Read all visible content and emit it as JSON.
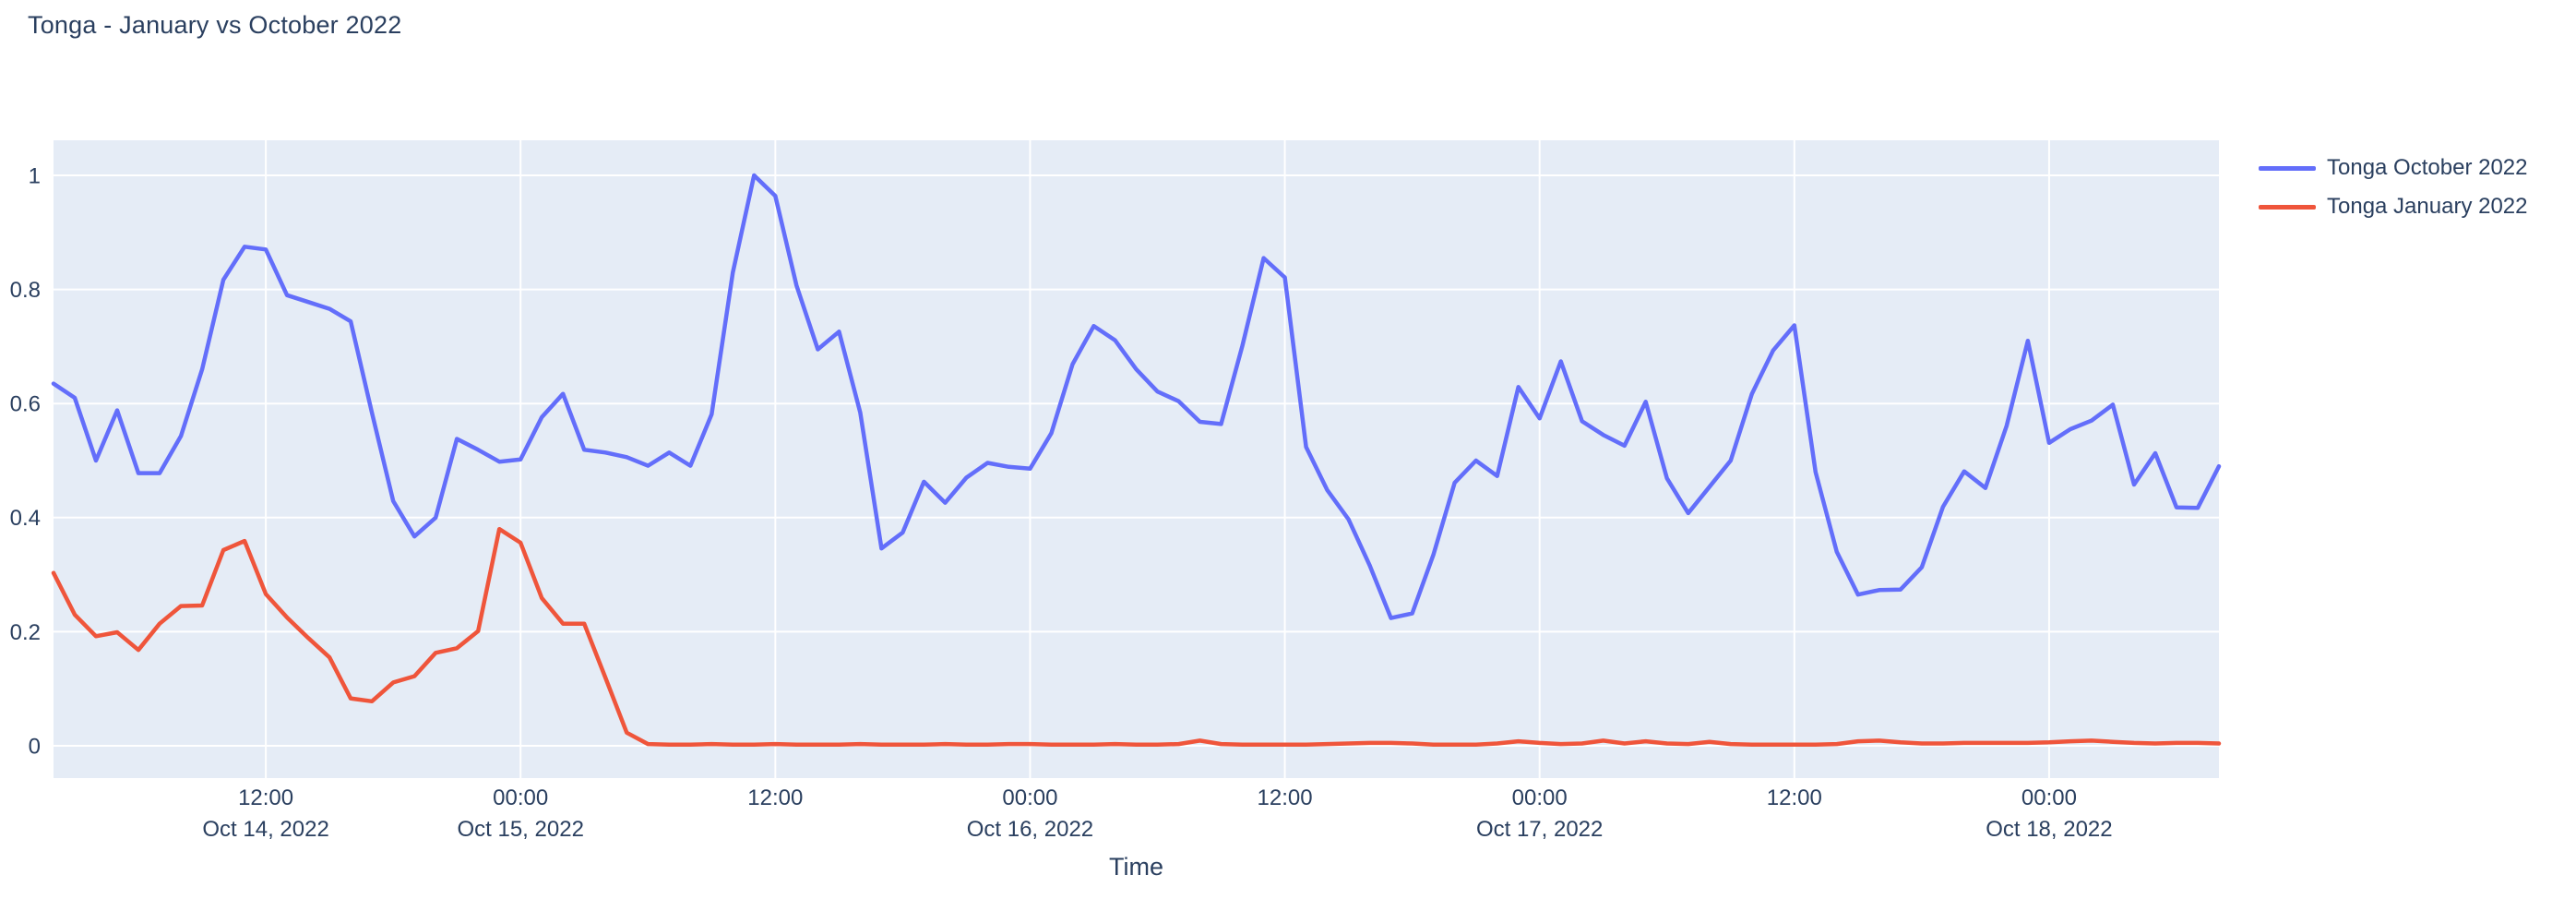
{
  "title": "Tonga - January vs October 2022",
  "colors": {
    "plot_background": "#e5ecf6",
    "paper_background": "#ffffff",
    "gridline": "#ffffff",
    "text": "#2a3f5f",
    "october_line": "#636efa",
    "january_line": "#ef553b"
  },
  "legend": {
    "items": [
      {
        "label": "Tonga October 2022",
        "color": "#636efa"
      },
      {
        "label": "Tonga January 2022",
        "color": "#ef553b"
      }
    ]
  },
  "x_axis_title": "Time",
  "chart_data": {
    "type": "line",
    "title": "Tonga - January vs October 2022",
    "xlabel": "Time",
    "ylabel": "",
    "ylim": [
      -0.06,
      1.06
    ],
    "grid": true,
    "legend_position": "outside-top-right",
    "y_ticks": [
      0,
      0.2,
      0.4,
      0.6,
      0.8,
      1
    ],
    "y_tick_labels": [
      "0",
      "0.2",
      "0.4",
      "0.6",
      "0.8",
      "1"
    ],
    "x_ticks": [
      {
        "index": 10,
        "time": "12:00",
        "date": "Oct 14, 2022"
      },
      {
        "index": 22,
        "time": "00:00",
        "date": "Oct 15, 2022"
      },
      {
        "index": 34,
        "time": "12:00",
        "date": ""
      },
      {
        "index": 46,
        "time": "00:00",
        "date": "Oct 16, 2022"
      },
      {
        "index": 58,
        "time": "12:00",
        "date": ""
      },
      {
        "index": 70,
        "time": "00:00",
        "date": "Oct 17, 2022"
      },
      {
        "index": 82,
        "time": "12:00",
        "date": ""
      },
      {
        "index": 94,
        "time": "00:00",
        "date": "Oct 18, 2022"
      }
    ],
    "x": [
      "2022-10-14 02:00",
      "2022-10-14 03:00",
      "2022-10-14 04:00",
      "2022-10-14 05:00",
      "2022-10-14 06:00",
      "2022-10-14 07:00",
      "2022-10-14 08:00",
      "2022-10-14 09:00",
      "2022-10-14 10:00",
      "2022-10-14 11:00",
      "2022-10-14 12:00",
      "2022-10-14 13:00",
      "2022-10-14 14:00",
      "2022-10-14 15:00",
      "2022-10-14 16:00",
      "2022-10-14 17:00",
      "2022-10-14 18:00",
      "2022-10-14 19:00",
      "2022-10-14 20:00",
      "2022-10-14 21:00",
      "2022-10-14 22:00",
      "2022-10-14 23:00",
      "2022-10-15 00:00",
      "2022-10-15 01:00",
      "2022-10-15 02:00",
      "2022-10-15 03:00",
      "2022-10-15 04:00",
      "2022-10-15 05:00",
      "2022-10-15 06:00",
      "2022-10-15 07:00",
      "2022-10-15 08:00",
      "2022-10-15 09:00",
      "2022-10-15 10:00",
      "2022-10-15 11:00",
      "2022-10-15 12:00",
      "2022-10-15 13:00",
      "2022-10-15 14:00",
      "2022-10-15 15:00",
      "2022-10-15 16:00",
      "2022-10-15 17:00",
      "2022-10-15 18:00",
      "2022-10-15 19:00",
      "2022-10-15 20:00",
      "2022-10-15 21:00",
      "2022-10-15 22:00",
      "2022-10-15 23:00",
      "2022-10-16 00:00",
      "2022-10-16 01:00",
      "2022-10-16 02:00",
      "2022-10-16 03:00",
      "2022-10-16 04:00",
      "2022-10-16 05:00",
      "2022-10-16 06:00",
      "2022-10-16 07:00",
      "2022-10-16 08:00",
      "2022-10-16 09:00",
      "2022-10-16 10:00",
      "2022-10-16 11:00",
      "2022-10-16 12:00",
      "2022-10-16 13:00",
      "2022-10-16 14:00",
      "2022-10-16 15:00",
      "2022-10-16 16:00",
      "2022-10-16 17:00",
      "2022-10-16 18:00",
      "2022-10-16 19:00",
      "2022-10-16 20:00",
      "2022-10-16 21:00",
      "2022-10-16 22:00",
      "2022-10-16 23:00",
      "2022-10-17 00:00",
      "2022-10-17 01:00",
      "2022-10-17 02:00",
      "2022-10-17 03:00",
      "2022-10-17 04:00",
      "2022-10-17 05:00",
      "2022-10-17 06:00",
      "2022-10-17 07:00",
      "2022-10-17 08:00",
      "2022-10-17 09:00",
      "2022-10-17 10:00",
      "2022-10-17 11:00",
      "2022-10-17 12:00",
      "2022-10-17 13:00",
      "2022-10-17 14:00",
      "2022-10-17 15:00",
      "2022-10-17 16:00",
      "2022-10-17 17:00",
      "2022-10-17 18:00",
      "2022-10-17 19:00",
      "2022-10-17 20:00",
      "2022-10-17 21:00",
      "2022-10-17 22:00",
      "2022-10-17 23:00",
      "2022-10-18 00:00",
      "2022-10-18 01:00",
      "2022-10-18 02:00",
      "2022-10-18 03:00",
      "2022-10-18 04:00",
      "2022-10-18 05:00",
      "2022-10-18 06:00",
      "2022-10-18 07:00",
      "2022-10-18 08:00"
    ],
    "series": [
      {
        "name": "Tonga October 2022",
        "color": "#636efa",
        "values": [
          0.635,
          0.61,
          0.5,
          0.588,
          0.478,
          0.478,
          0.543,
          0.66,
          0.817,
          0.875,
          0.87,
          0.79,
          0.778,
          0.766,
          0.744,
          0.584,
          0.429,
          0.367,
          0.4,
          0.538,
          0.519,
          0.498,
          0.502,
          0.576,
          0.617,
          0.519,
          0.514,
          0.506,
          0.491,
          0.514,
          0.491,
          0.581,
          0.83,
          1.0,
          0.964,
          0.807,
          0.695,
          0.726,
          0.584,
          0.346,
          0.374,
          0.463,
          0.426,
          0.47,
          0.496,
          0.489,
          0.486,
          0.548,
          0.669,
          0.736,
          0.711,
          0.66,
          0.621,
          0.604,
          0.568,
          0.564,
          0.701,
          0.855,
          0.821,
          0.524,
          0.448,
          0.397,
          0.316,
          0.224,
          0.232,
          0.335,
          0.461,
          0.5,
          0.473,
          0.629,
          0.574,
          0.674,
          0.569,
          0.545,
          0.526,
          0.603,
          0.469,
          0.408,
          0.454,
          0.5,
          0.617,
          0.693,
          0.737,
          0.48,
          0.34,
          0.265,
          0.273,
          0.274,
          0.313,
          0.419,
          0.481,
          0.452,
          0.561,
          0.71,
          0.531,
          0.555,
          0.57,
          0.598,
          0.458,
          0.513,
          0.418,
          0.417,
          0.49
        ]
      },
      {
        "name": "Tonga January 2022",
        "color": "#ef553b",
        "values": [
          0.303,
          0.23,
          0.192,
          0.199,
          0.168,
          0.214,
          0.245,
          0.246,
          0.343,
          0.359,
          0.266,
          0.225,
          0.189,
          0.155,
          0.083,
          0.078,
          0.111,
          0.122,
          0.163,
          0.171,
          0.201,
          0.38,
          0.356,
          0.259,
          0.214,
          0.214,
          0.119,
          0.023,
          0.003,
          0.002,
          0.002,
          0.003,
          0.002,
          0.002,
          0.003,
          0.002,
          0.002,
          0.002,
          0.003,
          0.002,
          0.002,
          0.002,
          0.003,
          0.002,
          0.002,
          0.003,
          0.003,
          0.002,
          0.002,
          0.002,
          0.003,
          0.002,
          0.002,
          0.003,
          0.009,
          0.003,
          0.002,
          0.002,
          0.002,
          0.002,
          0.003,
          0.004,
          0.005,
          0.005,
          0.004,
          0.002,
          0.002,
          0.002,
          0.004,
          0.008,
          0.005,
          0.003,
          0.004,
          0.009,
          0.004,
          0.008,
          0.004,
          0.003,
          0.007,
          0.003,
          0.002,
          0.002,
          0.002,
          0.002,
          0.003,
          0.008,
          0.009,
          0.006,
          0.004,
          0.004,
          0.005,
          0.005,
          0.005,
          0.005,
          0.006,
          0.008,
          0.009,
          0.007,
          0.005,
          0.004,
          0.005,
          0.005,
          0.004
        ]
      }
    ]
  }
}
